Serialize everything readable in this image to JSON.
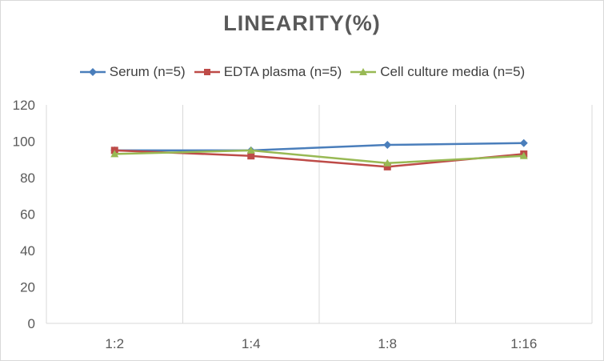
{
  "chart_data": {
    "type": "line",
    "title": "LINEARITY(%)",
    "categories": [
      "1:2",
      "1:4",
      "1:8",
      "1:16"
    ],
    "ylim": [
      0,
      120
    ],
    "yticks": [
      0,
      20,
      40,
      60,
      80,
      100,
      120
    ],
    "grid": "vertical",
    "legend_position": "top",
    "series": [
      {
        "name": "Serum (n=5)",
        "values": [
          95,
          95,
          98,
          99
        ],
        "color": "#4a7ebb",
        "marker": "diamond"
      },
      {
        "name": "EDTA plasma (n=5)",
        "values": [
          95,
          92,
          86,
          93
        ],
        "color": "#be4b48",
        "marker": "square"
      },
      {
        "name": "Cell culture media (n=5)",
        "values": [
          93,
          95,
          88,
          92
        ],
        "color": "#98b954",
        "marker": "triangle"
      }
    ]
  }
}
